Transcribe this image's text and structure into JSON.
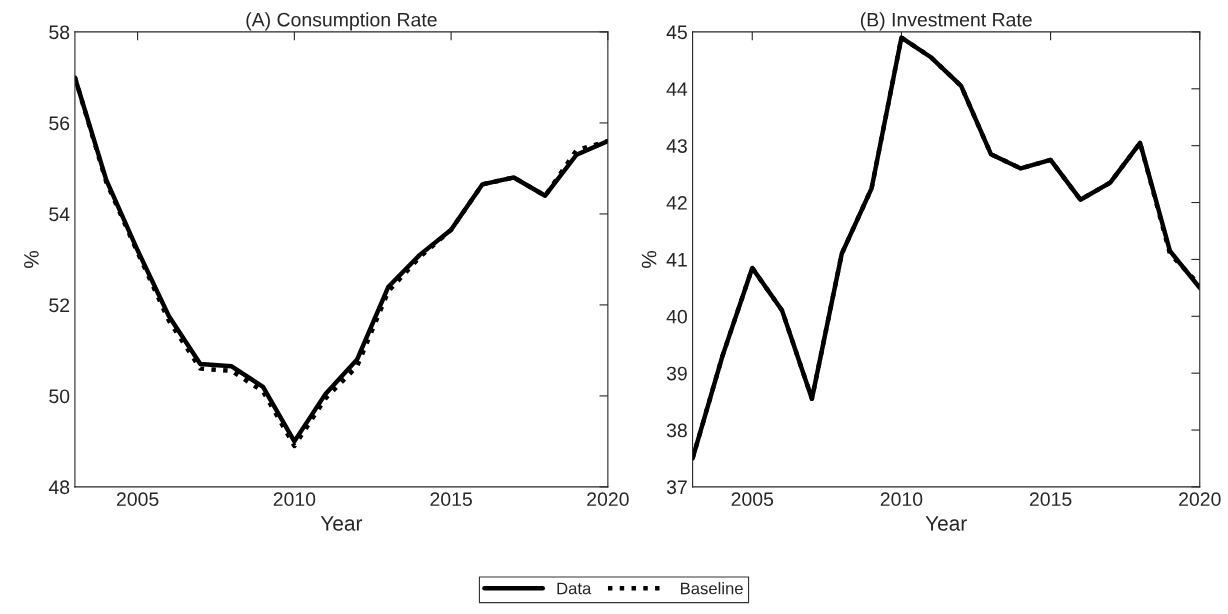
{
  "chart_data": [
    {
      "type": "line",
      "title": "(A) Consumption Rate",
      "xlabel": "Year",
      "ylabel": "%",
      "x": [
        2003,
        2004,
        2005,
        2006,
        2007,
        2008,
        2009,
        2010,
        2011,
        2012,
        2013,
        2014,
        2015,
        2016,
        2017,
        2018,
        2019,
        2020
      ],
      "series": [
        {
          "name": "Data",
          "color": "#000000",
          "line_style": "solid",
          "values": [
            57.0,
            54.75,
            53.2,
            51.75,
            50.7,
            50.65,
            50.2,
            49.0,
            50.05,
            50.8,
            52.4,
            53.1,
            53.65,
            54.65,
            54.8,
            54.4,
            55.3,
            55.6
          ]
        },
        {
          "name": "Baseline",
          "color": "#000000",
          "line_style": "dotted",
          "values": [
            57.0,
            54.7,
            53.15,
            51.65,
            50.6,
            50.55,
            50.1,
            48.9,
            49.95,
            50.65,
            52.3,
            53.05,
            53.65,
            54.65,
            54.8,
            54.4,
            55.4,
            55.6
          ]
        }
      ],
      "xlim": [
        2003,
        2020
      ],
      "xticks": [
        2005,
        2010,
        2015,
        2020
      ],
      "ylim": [
        48,
        58
      ],
      "yticks": [
        48,
        50,
        52,
        54,
        56,
        58
      ],
      "grid": false,
      "legend": "bottom"
    },
    {
      "type": "line",
      "title": "(B) Investment Rate",
      "xlabel": "Year",
      "ylabel": "%",
      "x": [
        2003,
        2004,
        2005,
        2006,
        2007,
        2008,
        2009,
        2010,
        2011,
        2012,
        2013,
        2014,
        2015,
        2016,
        2017,
        2018,
        2019,
        2020
      ],
      "series": [
        {
          "color": "#000000",
          "line_style": "solid",
          "values": [
            37.5,
            39.3,
            40.85,
            40.1,
            38.55,
            41.1,
            42.25,
            44.9,
            44.55,
            44.05,
            42.85,
            42.6,
            42.75,
            42.05,
            42.35,
            43.05,
            41.15,
            40.5
          ]
        },
        {
          "color": "#000000",
          "line_style": "dotted",
          "values": [
            37.5,
            39.3,
            40.85,
            40.1,
            38.55,
            41.1,
            42.25,
            44.9,
            44.55,
            44.05,
            42.85,
            42.6,
            42.75,
            42.05,
            42.35,
            43.05,
            41.1,
            40.55
          ]
        }
      ],
      "xlim": [
        2003,
        2020
      ],
      "xticks": [
        2005,
        2010,
        2015,
        2020
      ],
      "ylim": [
        37,
        45
      ],
      "yticks": [
        37,
        38,
        39,
        40,
        41,
        42,
        43,
        44,
        45
      ],
      "grid": false
    }
  ]
}
